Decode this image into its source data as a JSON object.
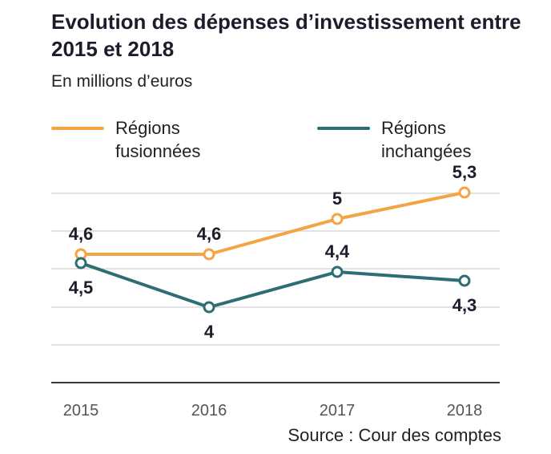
{
  "title": "Evolution des dépenses d’investissement entre 2015 et 2018",
  "subtitle": "En millions d’euros",
  "source": "Source : Cour des comptes",
  "colors": {
    "fusionnees": "#f5a445",
    "inchangees": "#2d6e72",
    "grid": "#d9d9d9",
    "axis": "#3a3a3a"
  },
  "chart_data": {
    "type": "line",
    "categories": [
      "2015",
      "2016",
      "2017",
      "2018"
    ],
    "series": [
      {
        "name": "Régions fusionnées",
        "values": [
          4.6,
          4.6,
          5,
          5.3
        ],
        "labels": [
          "4,6",
          "4,6",
          "5",
          "5,3"
        ]
      },
      {
        "name": "Régions inchangées",
        "values": [
          4.5,
          4,
          4.4,
          4.3
        ],
        "labels": [
          "4,5",
          "4",
          "4,4",
          "4,3"
        ]
      }
    ],
    "title": "Evolution des dépenses d’investissement entre 2015 et 2018",
    "ylabel": "En millions d’euros",
    "grid": true,
    "legend_position": "top"
  }
}
